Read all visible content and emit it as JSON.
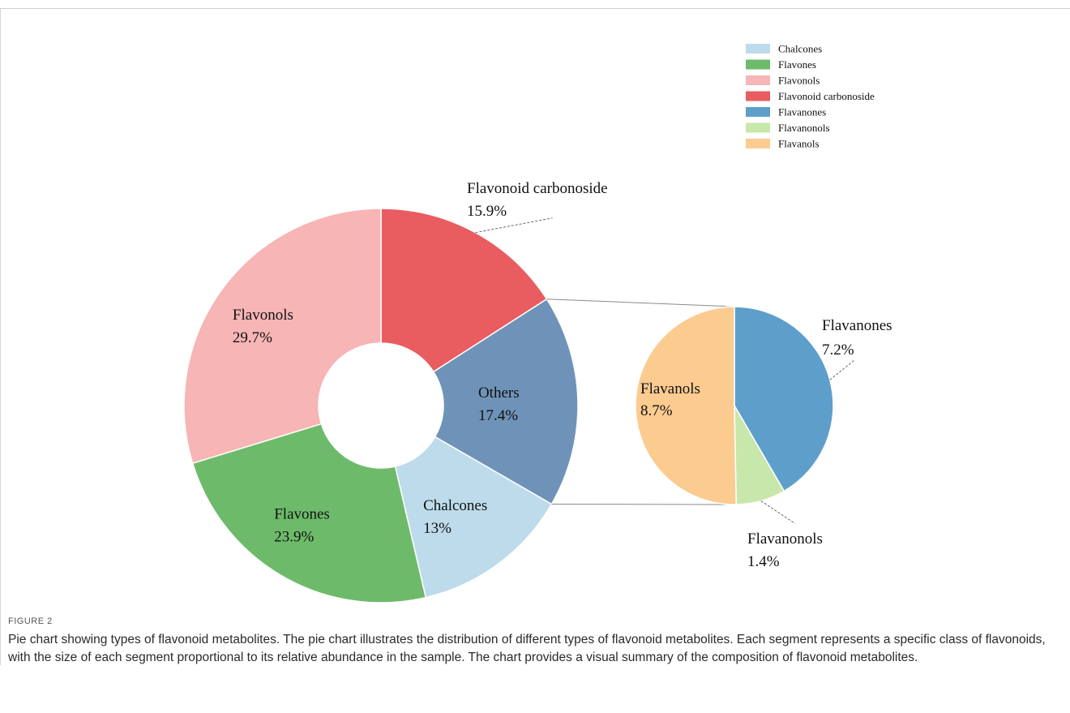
{
  "figure": {
    "label": "FIGURE 2",
    "caption": "Pie chart showing types of flavonoid metabolites. The pie chart illustrates the distribution of different types of flavonoid metabolites. Each segment represents a specific class of flavonoids, with the size of each segment proportional to its relative abundance in the sample. The chart provides a visual summary of the composition of flavonoid metabolites."
  },
  "chart_data": {
    "type": "pie",
    "main_pie": {
      "slices": [
        {
          "label": "Flavonoid carbonoside",
          "value": 15.9,
          "text": "15.9%",
          "color": "#e95c60"
        },
        {
          "label": "Others",
          "value": 17.4,
          "text": "17.4%",
          "color": "#6f93b8"
        },
        {
          "label": "Chalcones",
          "value": 13,
          "text": "13%",
          "color": "#bddbea"
        },
        {
          "label": "Flavones",
          "value": 23.9,
          "text": "23.9%",
          "color": "#6dbb6a"
        },
        {
          "label": "Flavonols",
          "value": 29.7,
          "text": "29.7%",
          "color": "#f7b5b5"
        }
      ],
      "donut_hole": true
    },
    "detail_pie": {
      "of": "Others",
      "slices": [
        {
          "label": "Flavanones",
          "value": 7.2,
          "text": "7.2%",
          "color": "#5e9ecb"
        },
        {
          "label": "Flavanonols",
          "value": 1.4,
          "text": "1.4%",
          "color": "#c8e7ab"
        },
        {
          "label": "Flavanols",
          "value": 8.7,
          "text": "8.7%",
          "color": "#fccb90"
        }
      ]
    },
    "legend": {
      "position": "top-right",
      "entries": [
        {
          "label": "Chalcones",
          "color": "#bddbea"
        },
        {
          "label": "Flavones",
          "color": "#6dbb6a"
        },
        {
          "label": "Flavonols",
          "color": "#f7b5b5"
        },
        {
          "label": "Flavonoid carbonoside",
          "color": "#e95c60"
        },
        {
          "label": "Flavanones",
          "color": "#5e9ecb"
        },
        {
          "label": "Flavanonols",
          "color": "#c8e7ab"
        },
        {
          "label": "Flavanols",
          "color": "#fccb90"
        }
      ]
    }
  }
}
